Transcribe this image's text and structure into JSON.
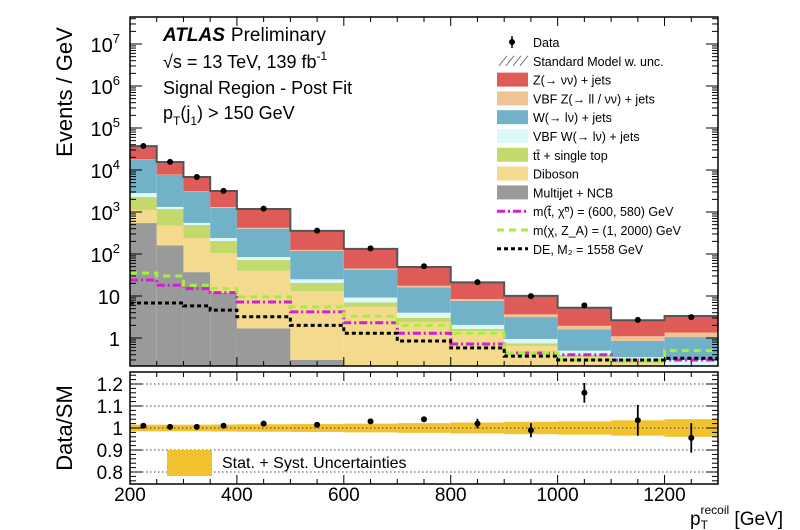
{
  "chart_data": {
    "type": "bar",
    "stacked": true,
    "log_y": true,
    "annotations": {
      "experiment": "ATLAS",
      "status": "Preliminary",
      "energy": "√s = 13 TeV, 139 fb",
      "energy_sup": "-1",
      "region": "Signal Region - Post Fit",
      "cut_main": "p",
      "cut_sub": "T",
      "cut_mid": "(j",
      "cut_sub2": "1",
      "cut_rest": ") > 150 GeV"
    },
    "ylabel": "Events / GeV",
    "ylim": [
      0.2,
      50000000
    ],
    "y_ticks": [
      {
        "base": "10",
        "exp": "7",
        "value": 10000000
      },
      {
        "base": "10",
        "exp": "6",
        "value": 1000000
      },
      {
        "base": "10",
        "exp": "5",
        "value": 100000
      },
      {
        "base": "10",
        "exp": "4",
        "value": 10000
      },
      {
        "base": "10",
        "exp": "3",
        "value": 1000
      },
      {
        "base": "10",
        "exp": "2",
        "value": 100
      },
      {
        "base": "10",
        "exp": "",
        "value": 10
      },
      {
        "base": "1",
        "exp": "",
        "value": 1
      }
    ],
    "x_bin_edges": [
      200,
      250,
      300,
      350,
      400,
      500,
      600,
      700,
      800,
      900,
      1000,
      1100,
      1200,
      1300
    ],
    "xlim": [
      200,
      1300
    ],
    "x_ticks": [
      "200",
      "400",
      "600",
      "800",
      "1000",
      "1200"
    ],
    "xlabel": {
      "main": "p",
      "sub": "T",
      "sup": "recoil",
      "unit": " [GeV]"
    },
    "backgrounds": [
      {
        "name": "Multijet + NCB",
        "color": "#9a9a9a",
        "values": [
          545,
          160,
          37,
          12,
          1.7,
          0.3,
          0.2,
          0.1,
          0.05,
          0.05,
          0.05,
          0.05,
          0.05
        ]
      },
      {
        "name": "Diboson",
        "color": "#f3da8c",
        "values": [
          575,
          310,
          203,
          93,
          38,
          12.7,
          5.3,
          2.3,
          1.4,
          0.6,
          0.3,
          0.2,
          0.15
        ]
      },
      {
        "name": "tt̄ + single top",
        "color": "#c4d96c",
        "values": [
          1150,
          705,
          250,
          100,
          32,
          7.5,
          1.5,
          0.6,
          0.2,
          0.1,
          0.05,
          0.03,
          0.02
        ]
      },
      {
        "name": "VBF W(→ lν) + jets",
        "color": "#dcf9fa",
        "values": [
          560,
          145,
          60,
          35,
          13,
          4.5,
          2.2,
          1.0,
          0.4,
          0.2,
          0.1,
          0.07,
          0.08
        ]
      },
      {
        "name": "W(→ lν) + jets",
        "color": "#72b2c8",
        "values": [
          14600,
          6280,
          2450,
          1020,
          315,
          93,
          33,
          12,
          5.6,
          2.2,
          1.1,
          0.5,
          0.75
        ]
      },
      {
        "name": "VBF Z(→ ll / νν) + jets",
        "color": "#f0c396",
        "values": [
          400,
          200,
          100,
          50,
          20,
          7,
          3,
          1.5,
          0.8,
          0.5,
          0.35,
          0.25,
          0.3
        ]
      },
      {
        "name": "Z(→ νν) + jets",
        "color": "#df5b57",
        "values": [
          19200,
          7700,
          3700,
          1850,
          760,
          230,
          87,
          31.5,
          12.6,
          6.4,
          3.3,
          1.55,
          2.0
        ]
      }
    ],
    "sm_label": "Standard Model w. unc.",
    "data": {
      "name": "Data",
      "values": [
        37400,
        15600,
        6830,
        3190,
        1200,
        360,
        136,
        51,
        21.4,
        9.9,
        6.0,
        2.7,
        3.15
      ]
    },
    "signals": [
      {
        "name": "m(t̃, χ̃⁰) = (600, 580) GeV",
        "color": "#d21fd6",
        "style": "dashdot",
        "values": [
          24,
          18,
          15,
          12,
          7.2,
          4.2,
          2.3,
          1.3,
          0.72,
          0.44,
          0.4,
          0.3,
          0.3
        ]
      },
      {
        "name": "m(χ, Z_A) = (1, 2000) GeV",
        "color": "#a6ef3f",
        "style": "dashed",
        "values": [
          35,
          30,
          18,
          15,
          9.5,
          5.5,
          3.3,
          2.0,
          1.3,
          0.44,
          0.3,
          0.3,
          0.5
        ]
      },
      {
        "name": "DE, M₂ = 1558 GeV",
        "color": "#000000",
        "style": "dotted",
        "values": [
          6.8,
          6.8,
          5.8,
          4.6,
          3.2,
          2.0,
          1.3,
          0.85,
          0.58,
          0.37,
          0.3,
          0.3,
          0.33
        ]
      }
    ],
    "ratio": {
      "ylabel": "Data/SM",
      "ylim": [
        0.75,
        1.25
      ],
      "y_ticks": [
        "1.2",
        "1.1",
        "1",
        "0.9",
        "0.8"
      ],
      "values": [
        1.01,
        1.005,
        1.005,
        1.01,
        1.02,
        1.015,
        1.03,
        1.04,
        1.02,
        0.99,
        1.16,
        1.035,
        0.955
      ],
      "errors": [
        0.004,
        0.004,
        0.005,
        0.006,
        0.007,
        0.008,
        0.01,
        0.012,
        0.022,
        0.032,
        0.045,
        0.07,
        0.067
      ],
      "band_halfwidth": [
        0.015,
        0.015,
        0.015,
        0.016,
        0.017,
        0.018,
        0.02,
        0.022,
        0.025,
        0.028,
        0.03,
        0.035,
        0.04
      ],
      "band_label": "Stat. + Syst. Uncertainties",
      "band_color": "#f2c12e"
    },
    "legend_position": "top-right"
  }
}
